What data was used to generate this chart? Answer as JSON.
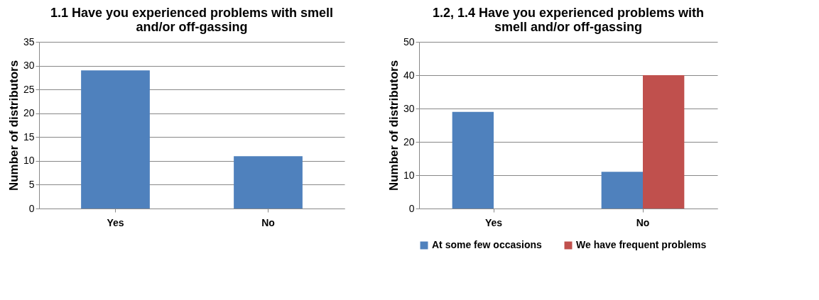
{
  "chart_data": [
    {
      "type": "bar",
      "title": "1.1 Have you experienced problems with smell and/or off-gassing",
      "ylabel": "Number of distributors",
      "categories": [
        "Yes",
        "No"
      ],
      "series": [
        {
          "color": "#4f81bd",
          "values": [
            29,
            11
          ]
        }
      ],
      "ylim": [
        0,
        35
      ],
      "yticks": [
        0,
        5,
        10,
        15,
        20,
        25,
        30,
        35
      ],
      "grid": "y"
    },
    {
      "type": "bar",
      "title": "1.2, 1.4 Have you experienced problems with smell and/or off-gassing",
      "ylabel": "Number of distributors",
      "categories": [
        "Yes",
        "No"
      ],
      "series": [
        {
          "name": "At some few occasions",
          "color": "#4f81bd",
          "values": [
            29,
            11
          ]
        },
        {
          "name": "We have frequent problems",
          "color": "#c0504d",
          "values": [
            null,
            40
          ]
        }
      ],
      "ylim": [
        0,
        50
      ],
      "yticks": [
        0,
        10,
        20,
        30,
        40,
        50
      ],
      "grid": "y",
      "legend": "bottom"
    }
  ]
}
